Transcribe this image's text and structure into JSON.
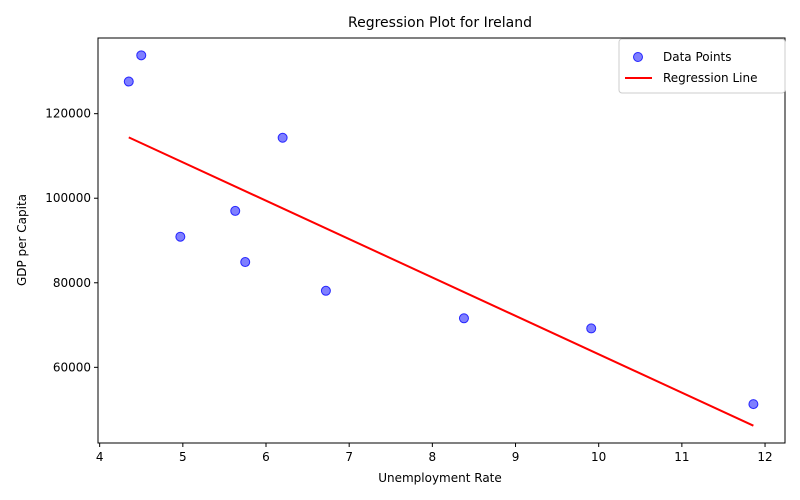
{
  "chart_data": {
    "type": "scatter",
    "title": "Regression Plot for Ireland",
    "xlabel": "Unemployment Rate",
    "ylabel": "GDP per Capita",
    "xlim": [
      3.98,
      12.24
    ],
    "ylim": [
      42100,
      137900
    ],
    "xticks": [
      4,
      5,
      6,
      7,
      8,
      9,
      10,
      11,
      12
    ],
    "yticks": [
      60000,
      80000,
      100000,
      120000
    ],
    "grid": false,
    "legend_position": "top-right",
    "series": [
      {
        "name": "Data Points",
        "kind": "scatter",
        "color": "#0000ff",
        "x": [
          4.35,
          4.5,
          4.97,
          5.63,
          5.75,
          6.2,
          6.72,
          8.38,
          9.91,
          11.86
        ],
        "y": [
          127600,
          133800,
          90900,
          97000,
          84900,
          114300,
          78100,
          71600,
          69200,
          51300
        ]
      },
      {
        "name": "Regression Line",
        "kind": "line",
        "color": "#ff0000",
        "x": [
          4.35,
          11.86
        ],
        "y": [
          114400,
          46200
        ]
      }
    ]
  }
}
